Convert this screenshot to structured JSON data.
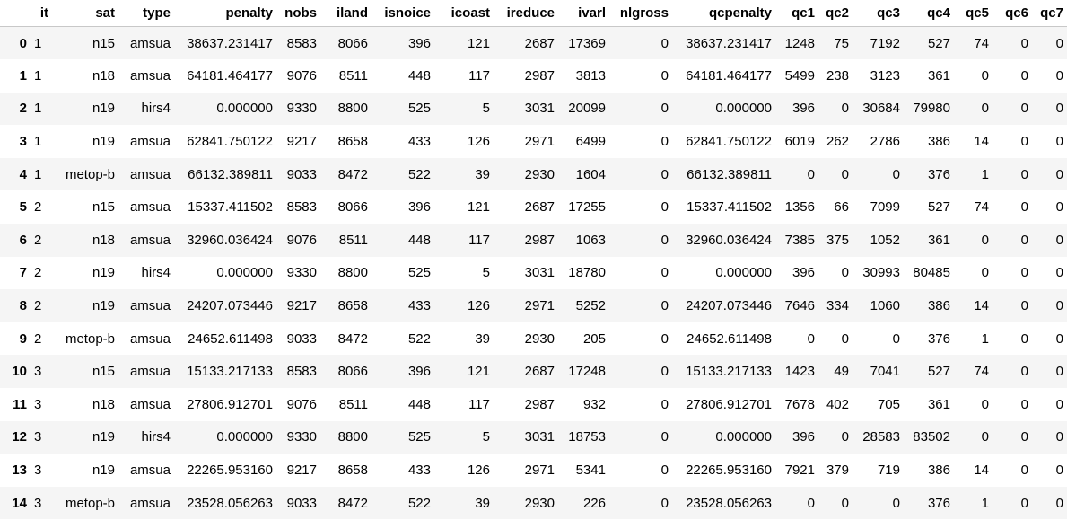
{
  "dataframe": {
    "columns": [
      "it",
      "sat",
      "type",
      "penalty",
      "nobs",
      "iland",
      "isnoice",
      "icoast",
      "ireduce",
      "ivarl",
      "nlgross",
      "qcpenalty",
      "qc1",
      "qc2",
      "qc3",
      "qc4",
      "qc5",
      "qc6",
      "qc7"
    ],
    "rows": [
      {
        "index": "0",
        "cells": [
          "1",
          "n15",
          "amsua",
          "38637.231417",
          "8583",
          "8066",
          "396",
          "121",
          "2687",
          "17369",
          "0",
          "38637.231417",
          "1248",
          "75",
          "7192",
          "527",
          "74",
          "0",
          "0"
        ]
      },
      {
        "index": "1",
        "cells": [
          "1",
          "n18",
          "amsua",
          "64181.464177",
          "9076",
          "8511",
          "448",
          "117",
          "2987",
          "3813",
          "0",
          "64181.464177",
          "5499",
          "238",
          "3123",
          "361",
          "0",
          "0",
          "0"
        ]
      },
      {
        "index": "2",
        "cells": [
          "1",
          "n19",
          "hirs4",
          "0.000000",
          "9330",
          "8800",
          "525",
          "5",
          "3031",
          "20099",
          "0",
          "0.000000",
          "396",
          "0",
          "30684",
          "79980",
          "0",
          "0",
          "0"
        ]
      },
      {
        "index": "3",
        "cells": [
          "1",
          "n19",
          "amsua",
          "62841.750122",
          "9217",
          "8658",
          "433",
          "126",
          "2971",
          "6499",
          "0",
          "62841.750122",
          "6019",
          "262",
          "2786",
          "386",
          "14",
          "0",
          "0"
        ]
      },
      {
        "index": "4",
        "cells": [
          "1",
          "metop-b",
          "amsua",
          "66132.389811",
          "9033",
          "8472",
          "522",
          "39",
          "2930",
          "1604",
          "0",
          "66132.389811",
          "0",
          "0",
          "0",
          "376",
          "1",
          "0",
          "0"
        ]
      },
      {
        "index": "5",
        "cells": [
          "2",
          "n15",
          "amsua",
          "15337.411502",
          "8583",
          "8066",
          "396",
          "121",
          "2687",
          "17255",
          "0",
          "15337.411502",
          "1356",
          "66",
          "7099",
          "527",
          "74",
          "0",
          "0"
        ]
      },
      {
        "index": "6",
        "cells": [
          "2",
          "n18",
          "amsua",
          "32960.036424",
          "9076",
          "8511",
          "448",
          "117",
          "2987",
          "1063",
          "0",
          "32960.036424",
          "7385",
          "375",
          "1052",
          "361",
          "0",
          "0",
          "0"
        ]
      },
      {
        "index": "7",
        "cells": [
          "2",
          "n19",
          "hirs4",
          "0.000000",
          "9330",
          "8800",
          "525",
          "5",
          "3031",
          "18780",
          "0",
          "0.000000",
          "396",
          "0",
          "30993",
          "80485",
          "0",
          "0",
          "0"
        ]
      },
      {
        "index": "8",
        "cells": [
          "2",
          "n19",
          "amsua",
          "24207.073446",
          "9217",
          "8658",
          "433",
          "126",
          "2971",
          "5252",
          "0",
          "24207.073446",
          "7646",
          "334",
          "1060",
          "386",
          "14",
          "0",
          "0"
        ]
      },
      {
        "index": "9",
        "cells": [
          "2",
          "metop-b",
          "amsua",
          "24652.611498",
          "9033",
          "8472",
          "522",
          "39",
          "2930",
          "205",
          "0",
          "24652.611498",
          "0",
          "0",
          "0",
          "376",
          "1",
          "0",
          "0"
        ]
      },
      {
        "index": "10",
        "cells": [
          "3",
          "n15",
          "amsua",
          "15133.217133",
          "8583",
          "8066",
          "396",
          "121",
          "2687",
          "17248",
          "0",
          "15133.217133",
          "1423",
          "49",
          "7041",
          "527",
          "74",
          "0",
          "0"
        ]
      },
      {
        "index": "11",
        "cells": [
          "3",
          "n18",
          "amsua",
          "27806.912701",
          "9076",
          "8511",
          "448",
          "117",
          "2987",
          "932",
          "0",
          "27806.912701",
          "7678",
          "402",
          "705",
          "361",
          "0",
          "0",
          "0"
        ]
      },
      {
        "index": "12",
        "cells": [
          "3",
          "n19",
          "hirs4",
          "0.000000",
          "9330",
          "8800",
          "525",
          "5",
          "3031",
          "18753",
          "0",
          "0.000000",
          "396",
          "0",
          "28583",
          "83502",
          "0",
          "0",
          "0"
        ]
      },
      {
        "index": "13",
        "cells": [
          "3",
          "n19",
          "amsua",
          "22265.953160",
          "9217",
          "8658",
          "433",
          "126",
          "2971",
          "5341",
          "0",
          "22265.953160",
          "7921",
          "379",
          "719",
          "386",
          "14",
          "0",
          "0"
        ]
      },
      {
        "index": "14",
        "cells": [
          "3",
          "metop-b",
          "amsua",
          "23528.056263",
          "9033",
          "8472",
          "522",
          "39",
          "2930",
          "226",
          "0",
          "23528.056263",
          "0",
          "0",
          "0",
          "376",
          "1",
          "0",
          "0"
        ]
      }
    ]
  }
}
